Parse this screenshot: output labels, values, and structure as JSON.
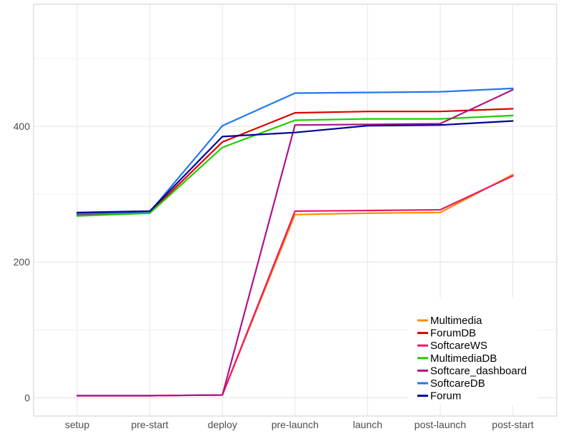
{
  "chart_data": {
    "type": "line",
    "title": "",
    "xlabel": "",
    "ylabel": "",
    "categories": [
      "setup",
      "pre-start",
      "deploy",
      "pre-launch",
      "launch",
      "post-launch",
      "post-start"
    ],
    "ylim": [
      -27,
      580
    ],
    "yticks": [
      0,
      200,
      400
    ],
    "grid": true,
    "legend_position": "bottom-right",
    "series": [
      {
        "name": "Multimedia",
        "color": "#ff8c00",
        "values": [
          3,
          3,
          4,
          270,
          272,
          273,
          329
        ]
      },
      {
        "name": "ForumDB",
        "color": "#dd0000",
        "values": [
          270,
          273,
          377,
          420,
          422,
          422,
          426
        ]
      },
      {
        "name": "SoftcareWS",
        "color": "#f0196a",
        "values": [
          3,
          3,
          4,
          275,
          276,
          277,
          327
        ]
      },
      {
        "name": "MultimediaDB",
        "color": "#22cc00",
        "values": [
          268,
          272,
          369,
          409,
          411,
          411,
          416
        ]
      },
      {
        "name": "Softcare_dashboard",
        "color": "#b0138a",
        "values": [
          3,
          3,
          4,
          402,
          403,
          404,
          454
        ]
      },
      {
        "name": "SoftcareDB",
        "color": "#2277ee",
        "values": [
          271,
          274,
          401,
          449,
          450,
          451,
          456
        ]
      },
      {
        "name": "Forum",
        "color": "#000099",
        "values": [
          273,
          275,
          385,
          391,
          401,
          402,
          408
        ]
      }
    ]
  }
}
